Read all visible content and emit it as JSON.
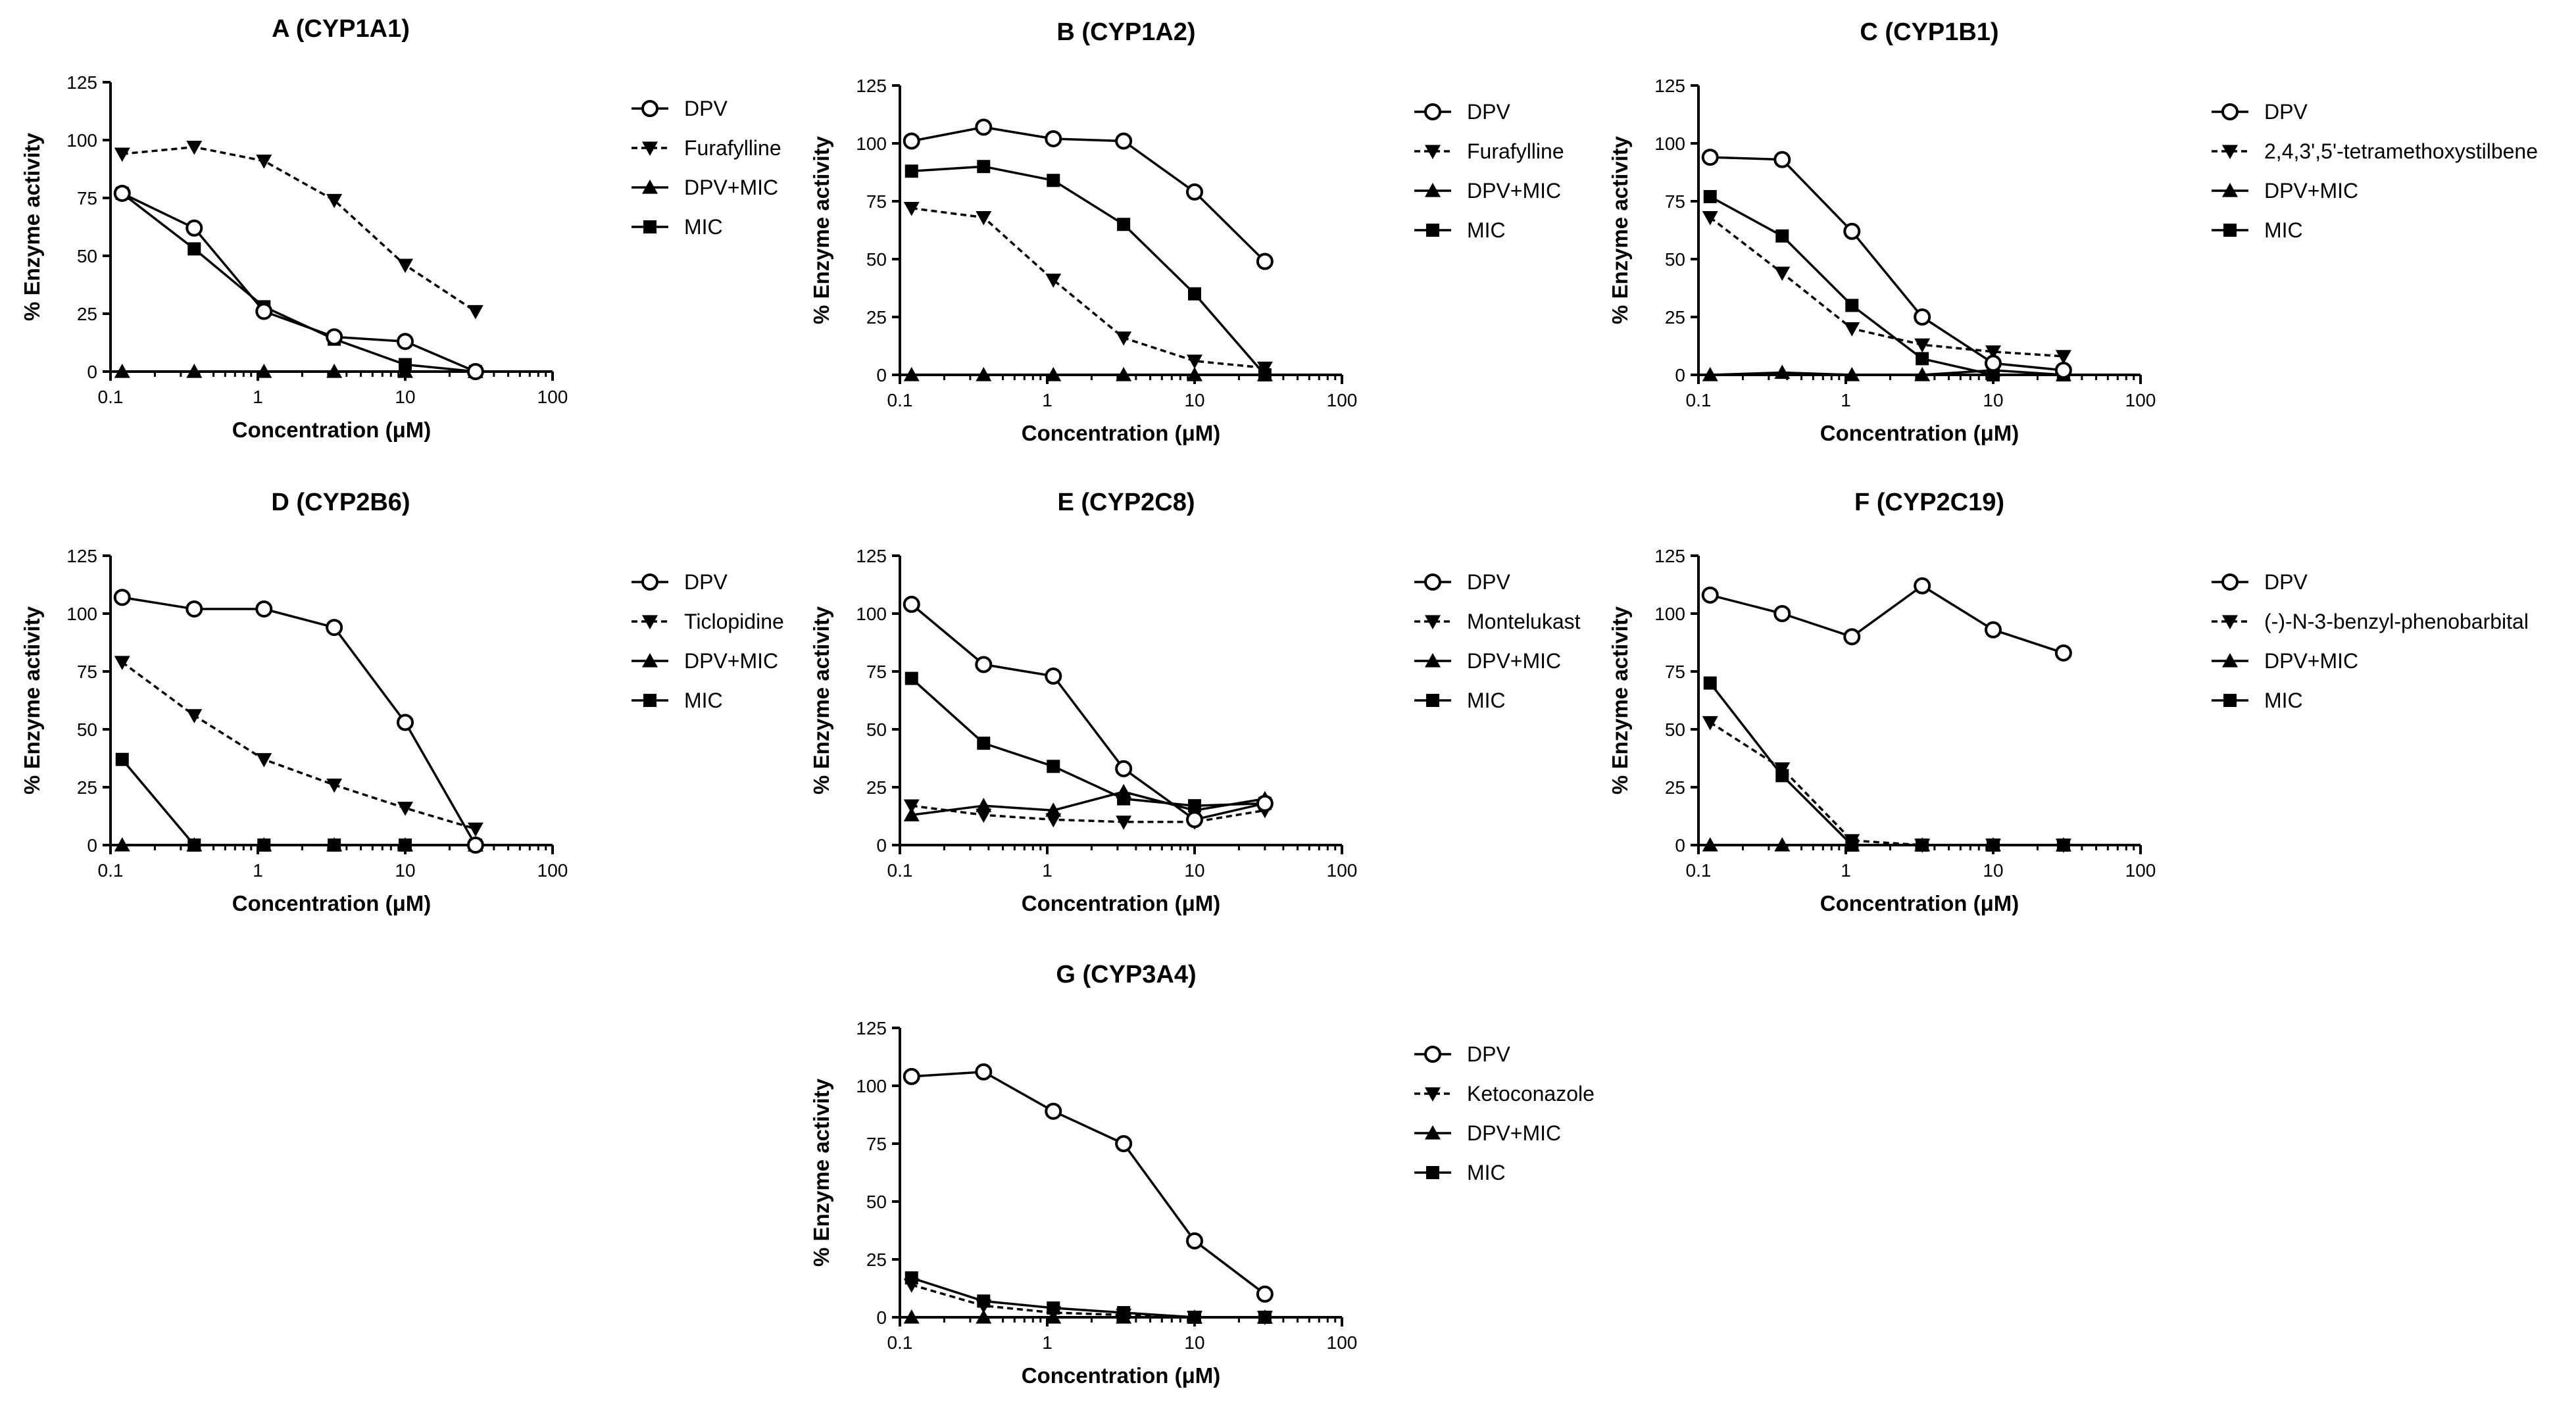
{
  "figure": {
    "colors": {
      "line": "#000000",
      "background": "#ffffff"
    }
  },
  "chart_data": [
    {
      "type": "line",
      "title": "A (CYP1A1)",
      "xlabel": "Concentration (μM)",
      "ylabel": "% Enzyme activity",
      "xscale": "log",
      "xlim": [
        0.1,
        100
      ],
      "ylim": [
        0,
        125
      ],
      "xticks": [
        "0.1",
        "1",
        "10",
        "100"
      ],
      "yticks": [
        "0",
        "25",
        "50",
        "75",
        "100",
        "125"
      ],
      "legend_position": "right",
      "x": [
        0.12,
        0.37,
        1.1,
        3.3,
        10,
        30
      ],
      "series": [
        {
          "name": "DPV",
          "marker": "open-circle",
          "line": "solid",
          "values": [
            77,
            62,
            26,
            15,
            13,
            0
          ]
        },
        {
          "name": "Furafylline",
          "marker": "down-triangle",
          "line": "dashed",
          "values": [
            94,
            97,
            91,
            74,
            46,
            26
          ]
        },
        {
          "name": "DPV+MIC",
          "marker": "up-triangle",
          "line": "solid",
          "values": [
            0,
            0,
            0,
            0,
            0,
            0
          ]
        },
        {
          "name": "MIC",
          "marker": "square",
          "line": "solid",
          "values": [
            77,
            53,
            28,
            14,
            3,
            0
          ]
        }
      ]
    },
    {
      "type": "line",
      "title": "B (CYP1A2)",
      "xlabel": "Concentration (μM)",
      "ylabel": "% Enzyme activity",
      "xscale": "log",
      "xlim": [
        0.1,
        100
      ],
      "ylim": [
        0,
        125
      ],
      "xticks": [
        "0.1",
        "1",
        "10",
        "100"
      ],
      "yticks": [
        "0",
        "25",
        "50",
        "75",
        "100",
        "125"
      ],
      "legend_position": "right",
      "x": [
        0.12,
        0.37,
        1.1,
        3.3,
        10,
        30
      ],
      "series": [
        {
          "name": "DPV",
          "marker": "open-circle",
          "line": "solid",
          "values": [
            101,
            107,
            102,
            101,
            79,
            49
          ]
        },
        {
          "name": "Furafylline",
          "marker": "down-triangle",
          "line": "dashed",
          "values": [
            72,
            68,
            41,
            16,
            6,
            3
          ]
        },
        {
          "name": "DPV+MIC",
          "marker": "up-triangle",
          "line": "solid",
          "values": [
            0,
            0,
            0,
            0,
            0,
            0
          ]
        },
        {
          "name": "MIC",
          "marker": "square",
          "line": "solid",
          "values": [
            88,
            90,
            84,
            65,
            35,
            0
          ]
        }
      ]
    },
    {
      "type": "line",
      "title": "C (CYP1B1)",
      "xlabel": "Concentration (μM)",
      "ylabel": "% Enzyme activity",
      "xscale": "log",
      "xlim": [
        0.1,
        100
      ],
      "ylim": [
        0,
        125
      ],
      "xticks": [
        "0.1",
        "1",
        "10",
        "100"
      ],
      "yticks": [
        "0",
        "25",
        "50",
        "75",
        "100",
        "125"
      ],
      "legend_position": "right",
      "x": [
        0.12,
        0.37,
        1.1,
        3.3,
        10,
        30
      ],
      "series": [
        {
          "name": "DPV",
          "marker": "open-circle",
          "line": "solid",
          "values": [
            94,
            93,
            62,
            25,
            5,
            2
          ]
        },
        {
          "name": "2,4,3',5'-tetramethoxystilbene",
          "marker": "down-triangle",
          "line": "dashed",
          "values": [
            68,
            44,
            20,
            13,
            10,
            8
          ]
        },
        {
          "name": "DPV+MIC",
          "marker": "up-triangle",
          "line": "solid",
          "values": [
            0,
            1,
            0,
            0,
            2,
            0
          ]
        },
        {
          "name": "MIC",
          "marker": "square",
          "line": "solid",
          "values": [
            77,
            60,
            30,
            7,
            0,
            0
          ]
        }
      ]
    },
    {
      "type": "line",
      "title": "D (CYP2B6)",
      "xlabel": "Concentration (μM)",
      "ylabel": "% Enzyme activity",
      "xscale": "log",
      "xlim": [
        0.1,
        100
      ],
      "ylim": [
        0,
        125
      ],
      "xticks": [
        "0.1",
        "1",
        "10",
        "100"
      ],
      "yticks": [
        "0",
        "25",
        "50",
        "75",
        "100",
        "125"
      ],
      "legend_position": "right",
      "x": [
        0.12,
        0.37,
        1.1,
        3.3,
        10,
        30
      ],
      "series": [
        {
          "name": "DPV",
          "marker": "open-circle",
          "line": "solid",
          "values": [
            107,
            102,
            102,
            94,
            53,
            0
          ]
        },
        {
          "name": "Ticlopidine",
          "marker": "down-triangle",
          "line": "dashed",
          "values": [
            79,
            56,
            37,
            26,
            16,
            7
          ]
        },
        {
          "name": "DPV+MIC",
          "marker": "up-triangle",
          "line": "solid",
          "values": [
            0,
            0,
            0,
            0,
            0,
            0
          ]
        },
        {
          "name": "MIC",
          "marker": "square",
          "line": "solid",
          "values": [
            37,
            0,
            0,
            0,
            0,
            0
          ]
        }
      ]
    },
    {
      "type": "line",
      "title": "E (CYP2C8)",
      "xlabel": "Concentration (μM)",
      "ylabel": "% Enzyme activity",
      "xscale": "log",
      "xlim": [
        0.1,
        100
      ],
      "ylim": [
        0,
        125
      ],
      "xticks": [
        "0.1",
        "1",
        "10",
        "100"
      ],
      "yticks": [
        "0",
        "25",
        "50",
        "75",
        "100",
        "125"
      ],
      "legend_position": "right",
      "x": [
        0.12,
        0.37,
        1.1,
        3.3,
        10,
        30
      ],
      "series": [
        {
          "name": "DPV",
          "marker": "open-circle",
          "line": "solid",
          "values": [
            104,
            78,
            73,
            33,
            11,
            18
          ]
        },
        {
          "name": "Montelukast",
          "marker": "down-triangle",
          "line": "dashed",
          "values": [
            17,
            13,
            11,
            10,
            10,
            15
          ]
        },
        {
          "name": "DPV+MIC",
          "marker": "up-triangle",
          "line": "solid",
          "values": [
            13,
            17,
            15,
            23,
            15,
            20
          ]
        },
        {
          "name": "MIC",
          "marker": "square",
          "line": "solid",
          "values": [
            72,
            44,
            34,
            20,
            17,
            18
          ]
        }
      ]
    },
    {
      "type": "line",
      "title": "F (CYP2C19)",
      "xlabel": "Concentration (μM)",
      "ylabel": "% Enzyme activity",
      "xscale": "log",
      "xlim": [
        0.1,
        100
      ],
      "ylim": [
        0,
        125
      ],
      "xticks": [
        "0.1",
        "1",
        "10",
        "100"
      ],
      "yticks": [
        "0",
        "25",
        "50",
        "75",
        "100",
        "125"
      ],
      "legend_position": "right",
      "x": [
        0.12,
        0.37,
        1.1,
        3.3,
        10,
        30
      ],
      "series": [
        {
          "name": "DPV",
          "marker": "open-circle",
          "line": "solid",
          "values": [
            108,
            100,
            90,
            112,
            93,
            83
          ]
        },
        {
          "name": "(-)-N-3-benzyl-phenobarbital",
          "marker": "down-triangle",
          "line": "dashed",
          "values": [
            53,
            33,
            2,
            0,
            0,
            0
          ]
        },
        {
          "name": "DPV+MIC",
          "marker": "up-triangle",
          "line": "solid",
          "values": [
            0,
            0,
            0,
            0,
            0,
            0
          ]
        },
        {
          "name": "MIC",
          "marker": "square",
          "line": "solid",
          "values": [
            70,
            30,
            0,
            0,
            0,
            0
          ]
        }
      ]
    },
    {
      "type": "line",
      "title": "G (CYP3A4)",
      "xlabel": "Concentration (μM)",
      "ylabel": "% Enzyme activity",
      "xscale": "log",
      "xlim": [
        0.1,
        100
      ],
      "ylim": [
        0,
        125
      ],
      "xticks": [
        "0.1",
        "1",
        "10",
        "100"
      ],
      "yticks": [
        "0",
        "25",
        "50",
        "75",
        "100",
        "125"
      ],
      "legend_position": "right",
      "x": [
        0.12,
        0.37,
        1.1,
        3.3,
        10,
        30
      ],
      "series": [
        {
          "name": "DPV",
          "marker": "open-circle",
          "line": "solid",
          "values": [
            104,
            106,
            89,
            75,
            33,
            10
          ]
        },
        {
          "name": "Ketoconazole",
          "marker": "down-triangle",
          "line": "dashed",
          "values": [
            14,
            5,
            2,
            1,
            0,
            0
          ]
        },
        {
          "name": "DPV+MIC",
          "marker": "up-triangle",
          "line": "solid",
          "values": [
            0,
            0,
            0,
            0,
            0,
            0
          ]
        },
        {
          "name": "MIC",
          "marker": "square",
          "line": "solid",
          "values": [
            17,
            7,
            4,
            2,
            0,
            0
          ]
        }
      ]
    }
  ]
}
